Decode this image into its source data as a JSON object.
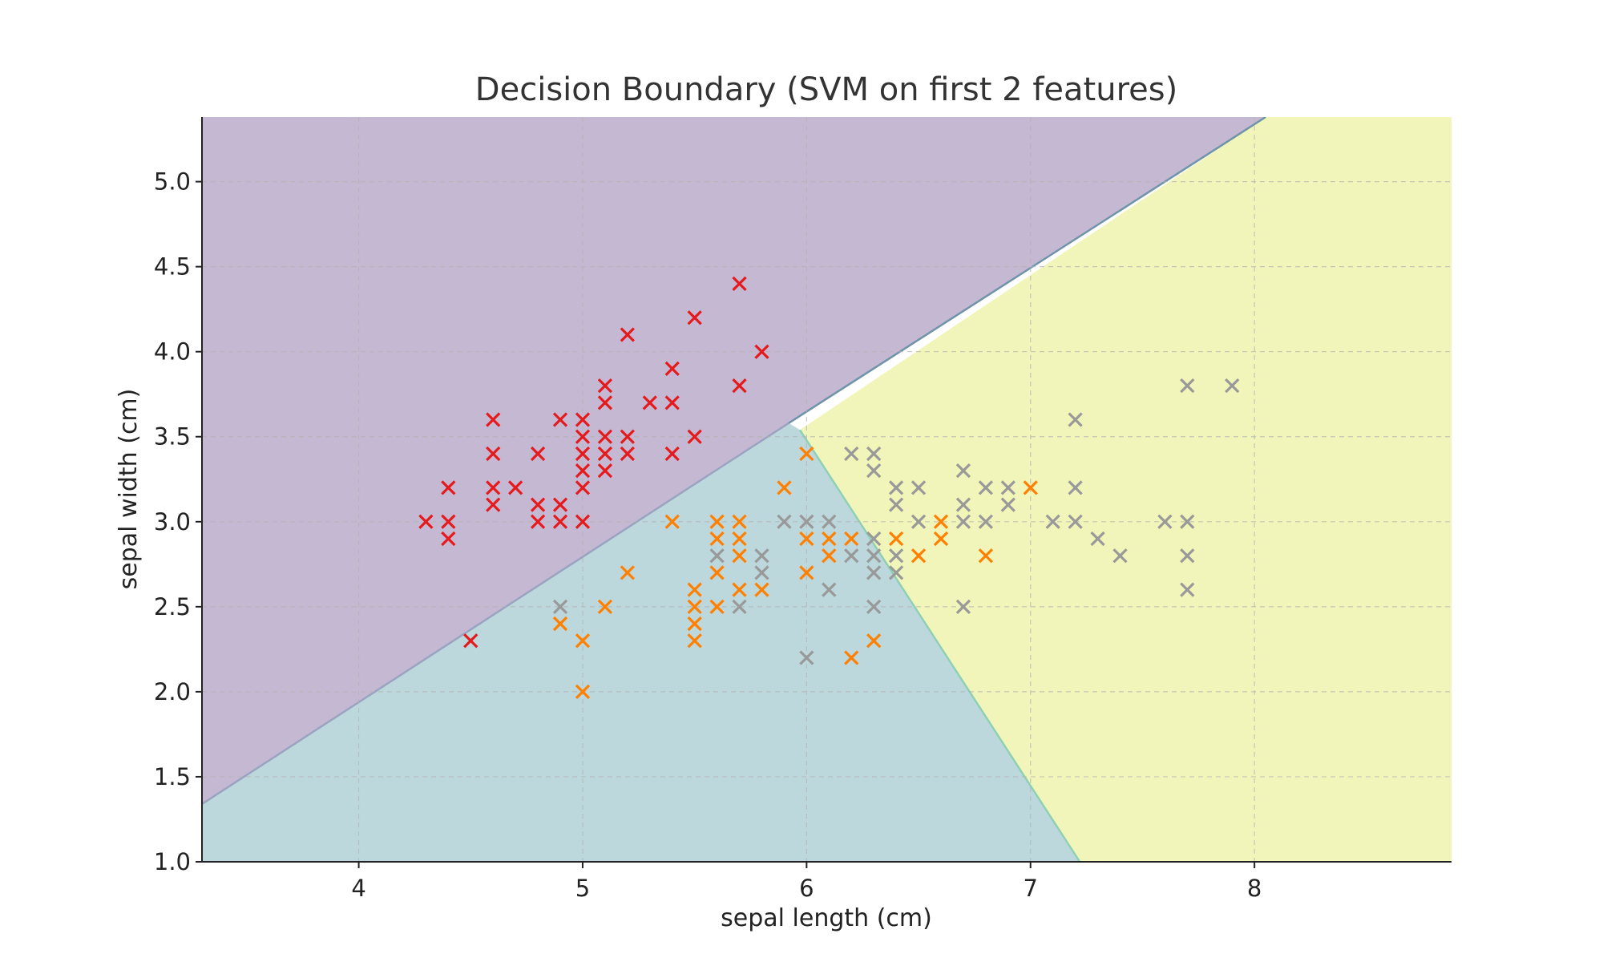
{
  "chart_data": {
    "type": "scatter",
    "title": "Decision Boundary (SVM on first 2 features)",
    "xlabel": "sepal length (cm)",
    "ylabel": "sepal width (cm)",
    "xlim": [
      3.3,
      8.88
    ],
    "ylim": [
      1.0,
      5.38
    ],
    "x_ticks": [
      4,
      5,
      6,
      7,
      8
    ],
    "y_ticks": [
      1.0,
      1.5,
      2.0,
      2.5,
      3.0,
      3.5,
      4.0,
      4.5,
      5.0
    ],
    "x_tick_labels": [
      "4",
      "5",
      "6",
      "7",
      "8"
    ],
    "y_tick_labels": [
      "1.0",
      "1.5",
      "2.0",
      "2.5",
      "3.0",
      "3.5",
      "4.0",
      "4.5",
      "5.0"
    ],
    "grid": true,
    "marker": "x",
    "regions": [
      {
        "class": 0,
        "color": "#c5b8d2",
        "boundary": [
          [
            3.3,
            1.34
          ],
          [
            5.92,
            3.58
          ],
          [
            8.05,
            5.38
          ],
          [
            3.3,
            5.38
          ]
        ]
      },
      {
        "class": 1,
        "color": "#bcd8dc",
        "boundary": [
          [
            3.3,
            1.34
          ],
          [
            5.92,
            3.58
          ],
          [
            5.97,
            3.54
          ],
          [
            7.22,
            1.0
          ],
          [
            3.3,
            1.0
          ]
        ]
      },
      {
        "class": 2,
        "color": "#f1f5b9",
        "boundary": [
          [
            5.97,
            3.54
          ],
          [
            7.22,
            1.0
          ],
          [
            8.88,
            1.0
          ],
          [
            8.88,
            5.38
          ],
          [
            8.05,
            5.38
          ]
        ]
      }
    ],
    "series": [
      {
        "color": "#e41a1c",
        "points": [
          [
            4.3,
            3.0
          ],
          [
            4.4,
            3.2
          ],
          [
            4.4,
            3.0
          ],
          [
            4.4,
            2.9
          ],
          [
            4.5,
            2.3
          ],
          [
            4.6,
            3.6
          ],
          [
            4.6,
            3.4
          ],
          [
            4.6,
            3.2
          ],
          [
            4.6,
            3.1
          ],
          [
            4.7,
            3.2
          ],
          [
            4.8,
            3.4
          ],
          [
            4.8,
            3.1
          ],
          [
            4.8,
            3.0
          ],
          [
            4.9,
            3.6
          ],
          [
            4.9,
            3.1
          ],
          [
            4.9,
            3.0
          ],
          [
            5.0,
            3.6
          ],
          [
            5.0,
            3.5
          ],
          [
            5.0,
            3.4
          ],
          [
            5.0,
            3.3
          ],
          [
            5.0,
            3.2
          ],
          [
            5.0,
            3.0
          ],
          [
            5.1,
            3.8
          ],
          [
            5.1,
            3.7
          ],
          [
            5.1,
            3.5
          ],
          [
            5.1,
            3.4
          ],
          [
            5.1,
            3.3
          ],
          [
            5.2,
            4.1
          ],
          [
            5.2,
            3.5
          ],
          [
            5.2,
            3.4
          ],
          [
            5.3,
            3.7
          ],
          [
            5.4,
            3.9
          ],
          [
            5.4,
            3.7
          ],
          [
            5.4,
            3.4
          ],
          [
            5.5,
            4.2
          ],
          [
            5.5,
            3.5
          ],
          [
            5.7,
            4.4
          ],
          [
            5.7,
            3.8
          ],
          [
            5.8,
            4.0
          ]
        ]
      },
      {
        "color": "#ff7f00",
        "points": [
          [
            4.9,
            2.4
          ],
          [
            5.0,
            2.3
          ],
          [
            5.0,
            2.0
          ],
          [
            5.1,
            2.5
          ],
          [
            5.2,
            2.7
          ],
          [
            5.4,
            3.0
          ],
          [
            5.5,
            2.6
          ],
          [
            5.5,
            2.5
          ],
          [
            5.5,
            2.4
          ],
          [
            5.5,
            2.3
          ],
          [
            5.6,
            3.0
          ],
          [
            5.6,
            2.9
          ],
          [
            5.6,
            2.7
          ],
          [
            5.6,
            2.5
          ],
          [
            5.7,
            3.0
          ],
          [
            5.7,
            2.9
          ],
          [
            5.7,
            2.8
          ],
          [
            5.7,
            2.6
          ],
          [
            5.8,
            2.6
          ],
          [
            5.9,
            3.2
          ],
          [
            6.0,
            3.4
          ],
          [
            6.0,
            2.9
          ],
          [
            6.0,
            2.7
          ],
          [
            6.1,
            2.9
          ],
          [
            6.1,
            2.8
          ],
          [
            6.2,
            2.9
          ],
          [
            6.2,
            2.2
          ],
          [
            6.3,
            2.3
          ],
          [
            6.4,
            2.9
          ],
          [
            6.5,
            2.8
          ],
          [
            6.6,
            3.0
          ],
          [
            6.6,
            2.9
          ],
          [
            6.8,
            2.8
          ],
          [
            7.0,
            3.2
          ]
        ]
      },
      {
        "color": "#999999",
        "points": [
          [
            4.9,
            2.5
          ],
          [
            5.6,
            2.8
          ],
          [
            5.7,
            2.5
          ],
          [
            5.8,
            2.8
          ],
          [
            5.8,
            2.7
          ],
          [
            5.9,
            3.0
          ],
          [
            6.0,
            3.0
          ],
          [
            6.0,
            2.2
          ],
          [
            6.1,
            3.0
          ],
          [
            6.1,
            2.6
          ],
          [
            6.2,
            3.4
          ],
          [
            6.2,
            2.8
          ],
          [
            6.3,
            3.4
          ],
          [
            6.3,
            3.3
          ],
          [
            6.3,
            2.9
          ],
          [
            6.3,
            2.8
          ],
          [
            6.3,
            2.7
          ],
          [
            6.3,
            2.5
          ],
          [
            6.4,
            3.2
          ],
          [
            6.4,
            3.1
          ],
          [
            6.4,
            2.8
          ],
          [
            6.4,
            2.7
          ],
          [
            6.5,
            3.2
          ],
          [
            6.5,
            3.0
          ],
          [
            6.7,
            3.3
          ],
          [
            6.7,
            3.1
          ],
          [
            6.7,
            3.0
          ],
          [
            6.7,
            2.5
          ],
          [
            6.8,
            3.2
          ],
          [
            6.8,
            3.0
          ],
          [
            6.9,
            3.2
          ],
          [
            6.9,
            3.1
          ],
          [
            7.1,
            3.0
          ],
          [
            7.2,
            3.6
          ],
          [
            7.2,
            3.2
          ],
          [
            7.2,
            3.0
          ],
          [
            7.3,
            2.9
          ],
          [
            7.4,
            2.8
          ],
          [
            7.6,
            3.0
          ],
          [
            7.7,
            3.8
          ],
          [
            7.7,
            3.0
          ],
          [
            7.7,
            2.8
          ],
          [
            7.7,
            2.6
          ],
          [
            7.9,
            3.8
          ]
        ]
      }
    ]
  }
}
